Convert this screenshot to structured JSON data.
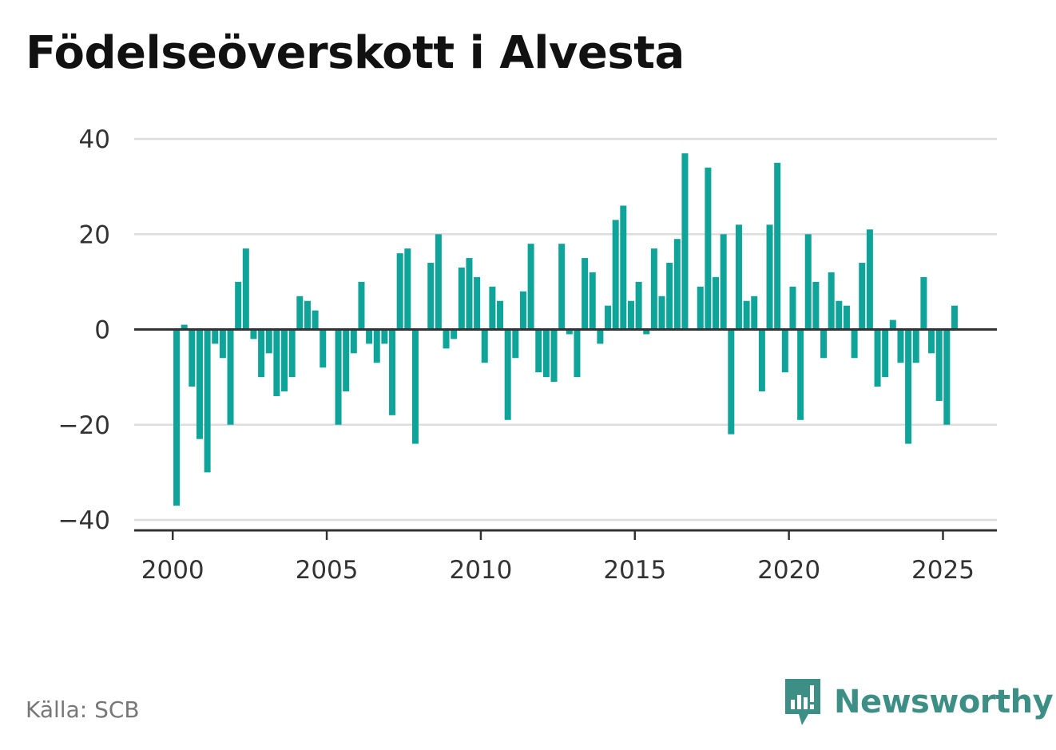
{
  "chart_data": {
    "type": "bar",
    "title": "Födelseöverskott i Alvesta",
    "xlabel": "",
    "ylabel": "",
    "x_ticks": [
      2000,
      2005,
      2010,
      2015,
      2020,
      2025
    ],
    "y_ticks": [
      40,
      20,
      0,
      -20,
      -40
    ],
    "y_tick_labels": [
      "40",
      "20",
      "0",
      "−20",
      "−40"
    ],
    "ylim": [
      -42,
      42
    ],
    "xlim": [
      1998.75,
      2026.75
    ],
    "grid": true,
    "legend": "none",
    "bar_color": "#0fa499",
    "x": [
      2000.125,
      2000.375,
      2000.625,
      2000.875,
      2001.125,
      2001.375,
      2001.625,
      2001.875,
      2002.125,
      2002.375,
      2002.625,
      2002.875,
      2003.125,
      2003.375,
      2003.625,
      2003.875,
      2004.125,
      2004.375,
      2004.625,
      2004.875,
      2005.125,
      2005.375,
      2005.625,
      2005.875,
      2006.125,
      2006.375,
      2006.625,
      2006.875,
      2007.125,
      2007.375,
      2007.625,
      2007.875,
      2008.125,
      2008.375,
      2008.625,
      2008.875,
      2009.125,
      2009.375,
      2009.625,
      2009.875,
      2010.125,
      2010.375,
      2010.625,
      2010.875,
      2011.125,
      2011.375,
      2011.625,
      2011.875,
      2012.125,
      2012.375,
      2012.625,
      2012.875,
      2013.125,
      2013.375,
      2013.625,
      2013.875,
      2014.125,
      2014.375,
      2014.625,
      2014.875,
      2015.125,
      2015.375,
      2015.625,
      2015.875,
      2016.125,
      2016.375,
      2016.625,
      2016.875,
      2017.125,
      2017.375,
      2017.625,
      2017.875,
      2018.125,
      2018.375,
      2018.625,
      2018.875,
      2019.125,
      2019.375,
      2019.625,
      2019.875,
      2020.125,
      2020.375,
      2020.625,
      2020.875,
      2021.125,
      2021.375,
      2021.625,
      2021.875,
      2022.125,
      2022.375,
      2022.625,
      2022.875,
      2023.125,
      2023.375,
      2023.625,
      2023.875,
      2024.125,
      2024.375,
      2024.625,
      2024.875,
      2025.125,
      2025.375
    ],
    "values": [
      -37,
      1,
      -12,
      -23,
      -30,
      -3,
      -6,
      -20,
      10,
      17,
      -2,
      -10,
      -5,
      -14,
      -13,
      -10,
      7,
      6,
      4,
      -8,
      0,
      -20,
      -13,
      -5,
      10,
      -3,
      -7,
      -3,
      -18,
      16,
      17,
      -24,
      0,
      14,
      20,
      -4,
      -2,
      13,
      15,
      11,
      -7,
      9,
      6,
      -19,
      -6,
      8,
      18,
      -9,
      -10,
      -11,
      18,
      -1,
      -10,
      15,
      12,
      -3,
      5,
      23,
      26,
      6,
      10,
      -1,
      17,
      7,
      14,
      19,
      37,
      0,
      9,
      34,
      11,
      20,
      -22,
      22,
      6,
      7,
      -13,
      22,
      35,
      -9,
      9,
      -19,
      20,
      10,
      -6,
      12,
      6,
      5,
      -6,
      14,
      21,
      -12,
      -10,
      2,
      -7,
      -24,
      -7,
      11,
      -5,
      -15,
      -20,
      5
    ]
  },
  "footer": {
    "source": "Källa: SCB",
    "brand": "Newsworthy"
  },
  "colors": {
    "bar": "#0fa499",
    "grid": "#dddddd",
    "axis": "#333333",
    "brand": "#3d8f86"
  }
}
